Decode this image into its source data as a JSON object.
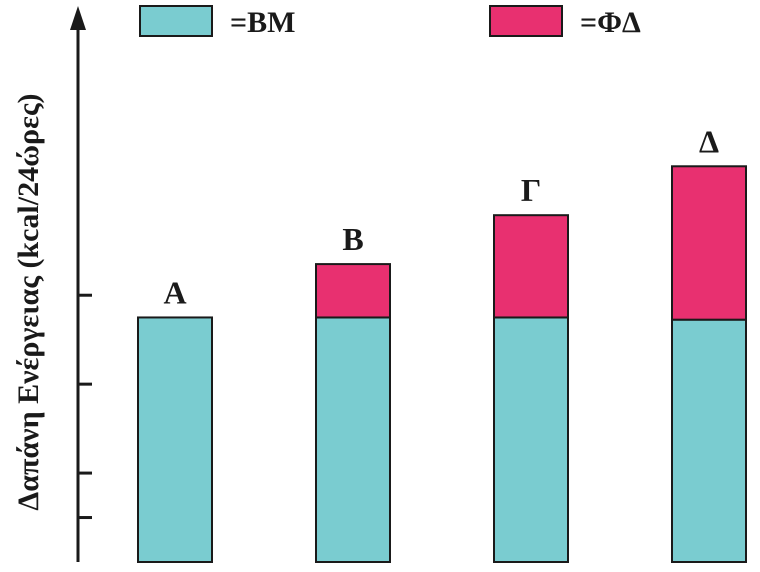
{
  "chart_data": {
    "type": "bar",
    "stacked": true,
    "categories": [
      "Α",
      "Β",
      "Γ",
      "Δ"
    ],
    "series": [
      {
        "name": "ΒΜ",
        "values": [
          55,
          55,
          55,
          54.5
        ],
        "color": "#7accd0"
      },
      {
        "name": "ΦΔ",
        "values": [
          0,
          12,
          23,
          34.5
        ],
        "color": "#e83070"
      }
    ],
    "legend": {
      "entries": [
        {
          "label": "=ΒΜ",
          "color": "#7accd0"
        },
        {
          "label": "=ΦΔ",
          "color": "#e83070"
        }
      ],
      "placement": "top"
    },
    "ylabel": "Δαπάνη Ενέργειας (kcal/24ώρες)",
    "xlabel": "",
    "title": "",
    "ylim": [
      0,
      121
    ],
    "y_ticks": [
      10,
      20,
      40,
      60
    ],
    "y_tick_labels_shown": false,
    "grid": false
  }
}
